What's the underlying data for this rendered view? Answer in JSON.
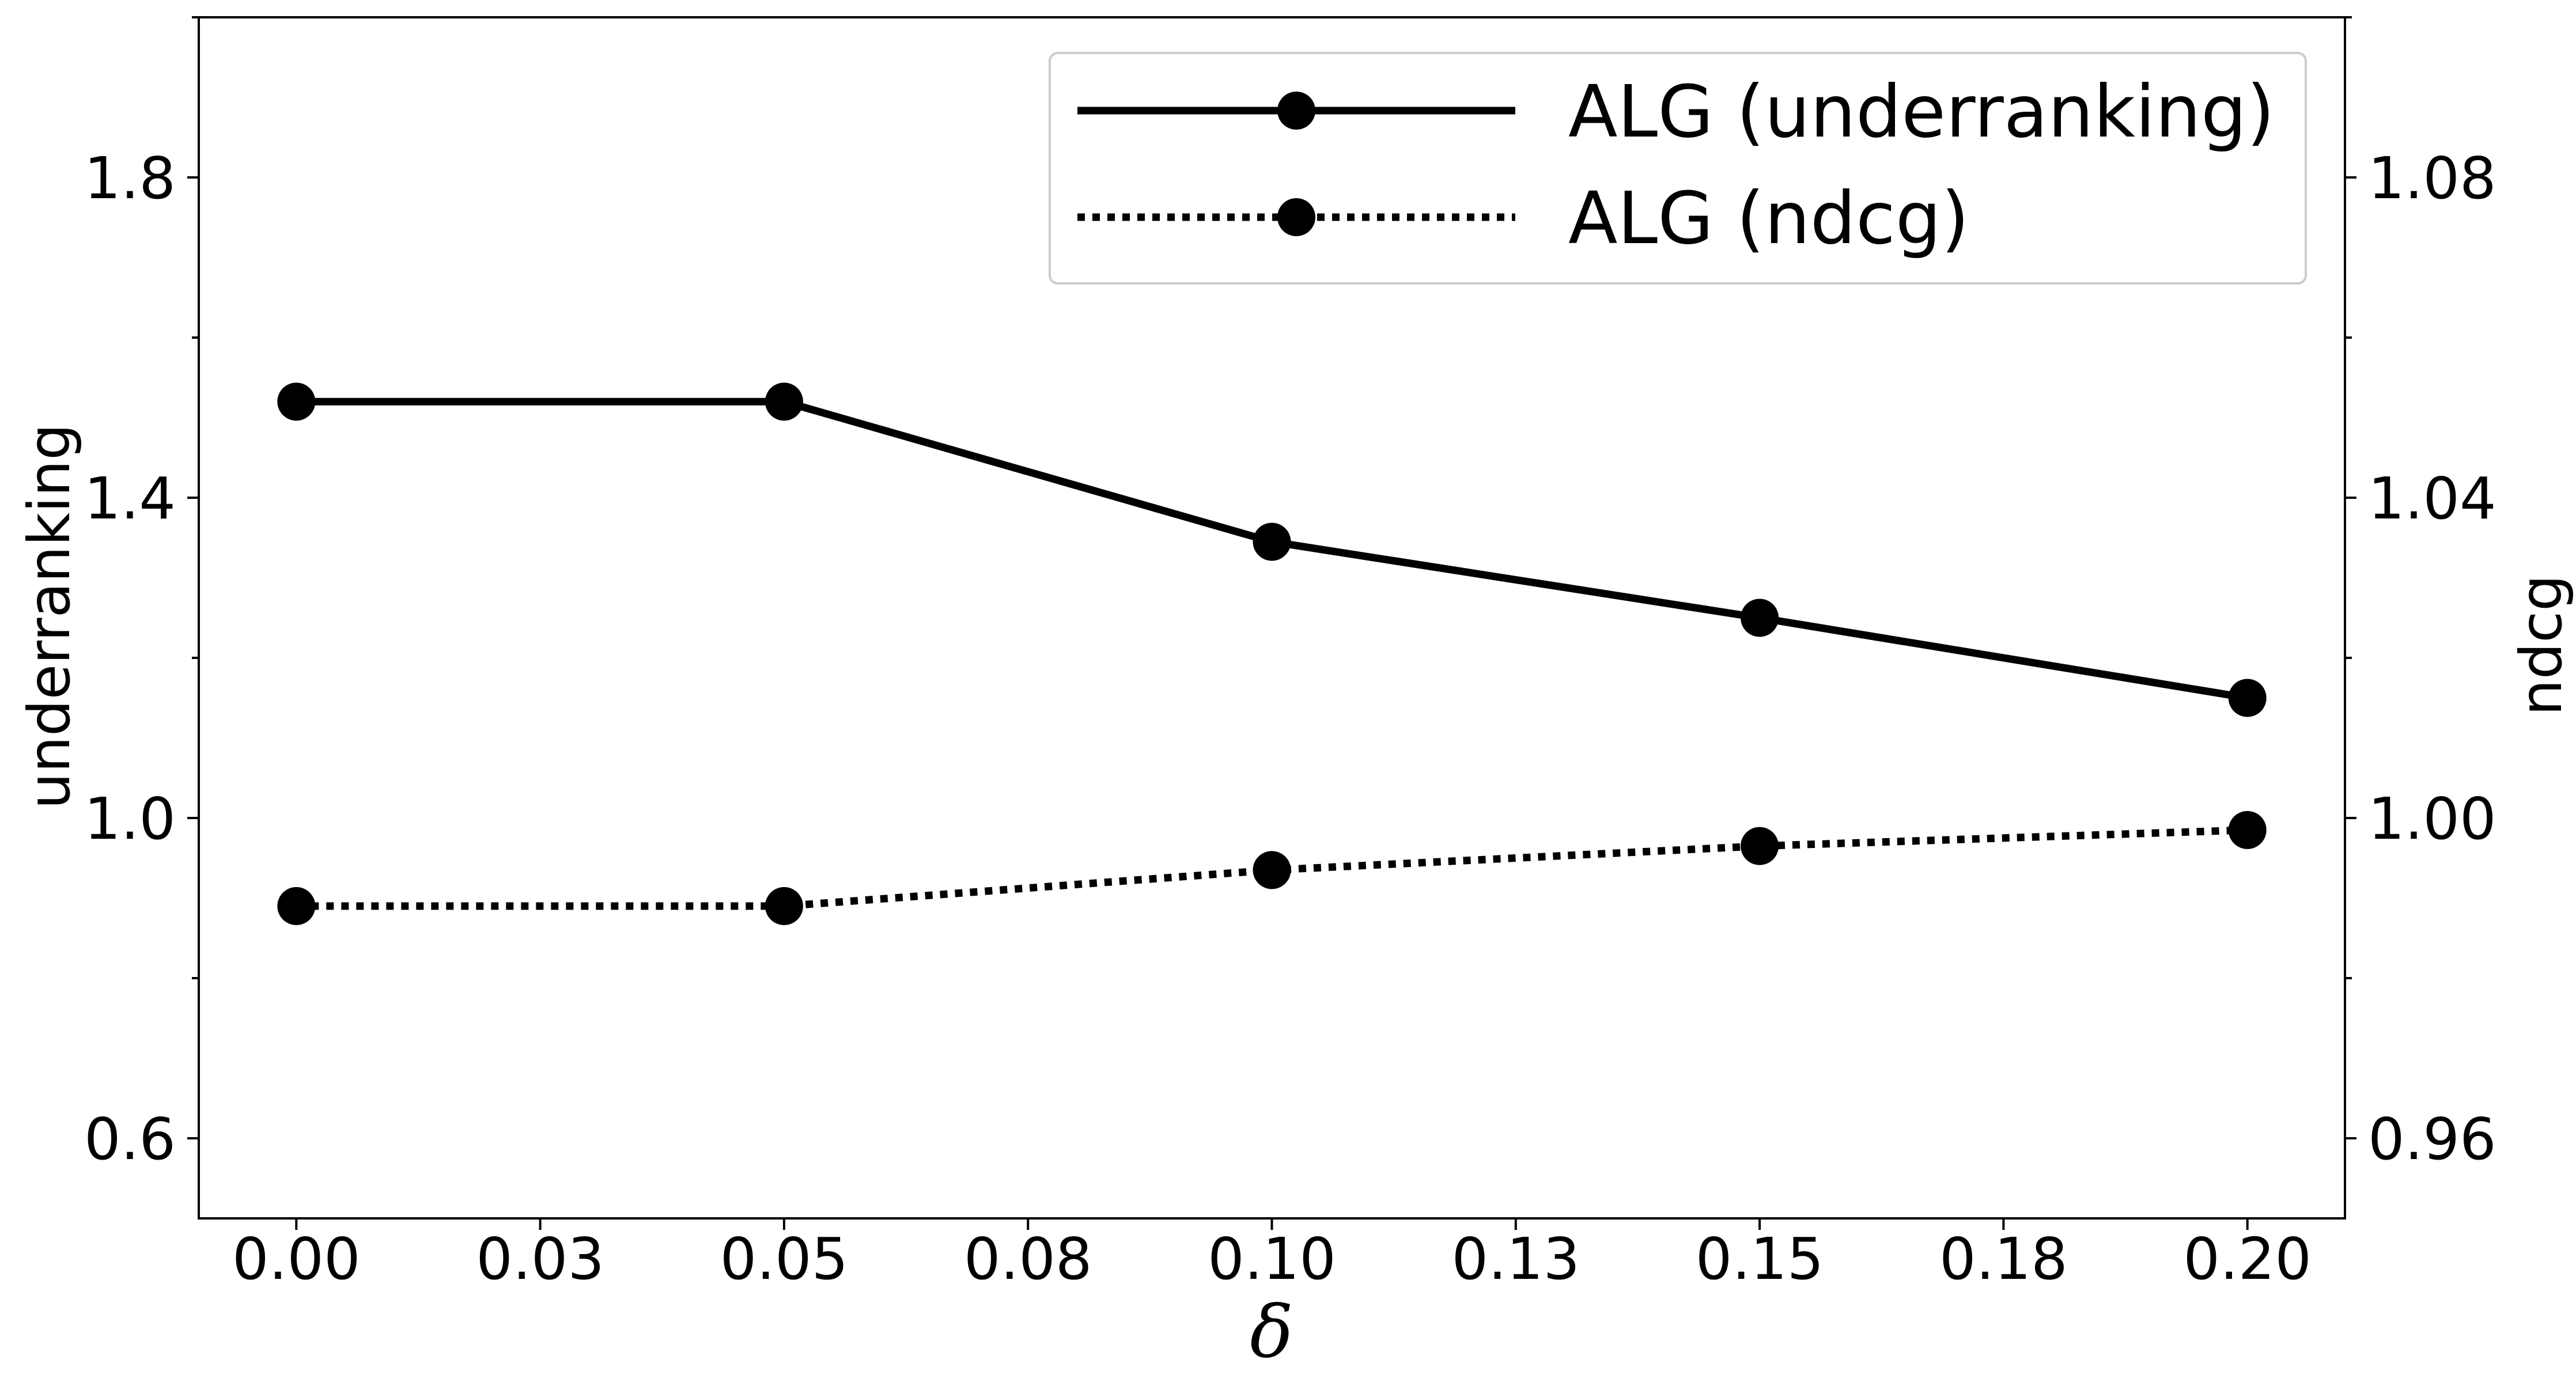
{
  "chart_data": {
    "type": "line",
    "x": [
      0.0,
      0.05,
      0.1,
      0.15,
      0.2
    ],
    "xlabel": "δ",
    "xlim": [
      -0.01,
      0.21
    ],
    "xticks": [
      "0.00",
      "0.03",
      "0.05",
      "0.08",
      "0.10",
      "0.13",
      "0.15",
      "0.18",
      "0.20"
    ],
    "xtick_values": [
      0.0,
      0.025,
      0.05,
      0.075,
      0.1,
      0.125,
      0.15,
      0.175,
      0.2
    ],
    "ylabel_left": "underranking",
    "ylim_left": [
      0.5,
      2.0
    ],
    "yticks_left": [
      "0.6",
      "1.0",
      "1.4",
      "1.8"
    ],
    "ytick_values_left": [
      0.6,
      1.0,
      1.4,
      1.8
    ],
    "yminor_left": [
      0.8,
      1.2,
      1.6,
      2.0
    ],
    "ylabel_right": "ndcg",
    "ylim_right": [
      0.95,
      1.1
    ],
    "yticks_right": [
      "0.96",
      "1.00",
      "1.04",
      "1.08"
    ],
    "ytick_values_right": [
      0.96,
      1.0,
      1.04,
      1.08
    ],
    "yminor_right": [
      0.98,
      1.02,
      1.06,
      1.1
    ],
    "grid": false,
    "legend_position": "top-right",
    "series": [
      {
        "name": "ALG (underranking)",
        "axis": "left",
        "line_style": "solid",
        "marker": "circle",
        "color": "#000000",
        "values": [
          1.52,
          1.52,
          1.345,
          1.25,
          1.15
        ]
      },
      {
        "name": "ALG (ndcg)",
        "axis": "right",
        "line_style": "dotted",
        "marker": "circle",
        "color": "#000000",
        "values": [
          0.989,
          0.989,
          0.9935,
          0.9965,
          0.9985
        ]
      }
    ]
  }
}
